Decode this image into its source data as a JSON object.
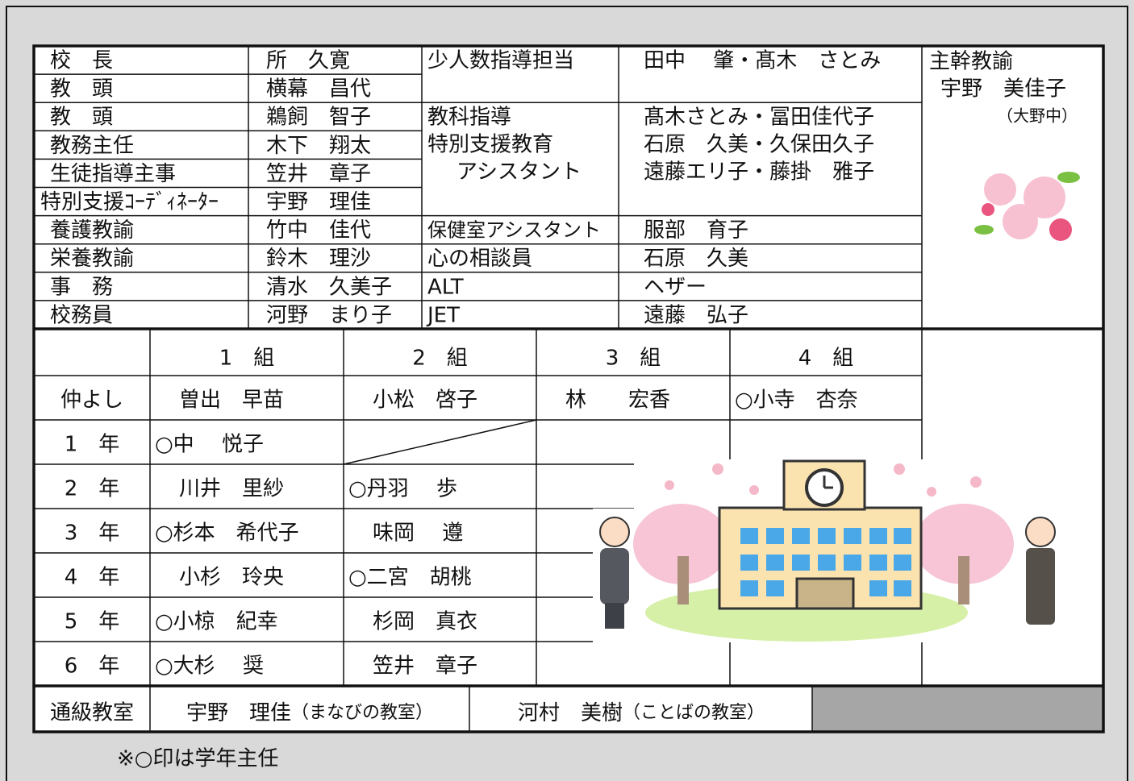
{
  "staff": [
    {
      "role": "校　長",
      "name": "所　久寛"
    },
    {
      "role": "教　頭",
      "name": "横幕　昌代"
    },
    {
      "role": "教　頭",
      "name": "鵜飼　智子"
    },
    {
      "role": "教務主任",
      "name": "木下　翔太"
    },
    {
      "role": "生徒指導主事",
      "name": "笠井　章子"
    },
    {
      "role": "特別支援ｺｰﾃﾞｨﾈｰﾀｰ",
      "name": "宇野　理佳"
    },
    {
      "role": "養護教諭",
      "name": "竹中　佳代"
    },
    {
      "role": "栄養教諭",
      "name": "鈴木　理沙"
    },
    {
      "role": "事　務",
      "name": "清水　久美子"
    },
    {
      "role": "校務員",
      "name": "河野　まり子"
    }
  ],
  "support": [
    {
      "role": [
        "少人数指導担当"
      ],
      "names": [
        "田中　 肇・髙木　さとみ"
      ]
    },
    {
      "role": [
        "教科指導",
        "特別支援教育",
        "アシスタント"
      ],
      "names": [
        "髙木さとみ・冨田佳代子",
        "石原　久美・久保田久子",
        "遠藤エリ子・藤掛　雅子"
      ]
    },
    {
      "role": [
        "保健室アシスタント"
      ],
      "names": [
        "服部　育子"
      ]
    },
    {
      "role": [
        "心の相談員"
      ],
      "names": [
        "石原　久美"
      ]
    },
    {
      "role": [
        "ALT"
      ],
      "names": [
        "ヘザー"
      ]
    },
    {
      "role": [
        "JET"
      ],
      "names": [
        "遠藤　弘子"
      ]
    }
  ],
  "head_teacher": {
    "title": "主幹教諭",
    "name": "宇野　美佳子",
    "note": "（大野中）"
  },
  "classes": {
    "headers": [
      "1　組",
      "2　組",
      "3　組",
      "4　組"
    ],
    "rows": [
      {
        "label": "仲よし",
        "cells": [
          "曽出　早苗",
          "小松　啓子",
          "林　　宏香",
          "○小寺　杏奈"
        ]
      },
      {
        "label": "1　年",
        "cells": [
          "○中　 悦子",
          null,
          null,
          null
        ]
      },
      {
        "label": "2　年",
        "cells": [
          "川井　里紗",
          "○丹羽　 歩",
          null,
          null
        ]
      },
      {
        "label": "3　年",
        "cells": [
          "○杉本　希代子",
          "味岡　 遵",
          null,
          null
        ]
      },
      {
        "label": "4　年",
        "cells": [
          "小杉　玲央",
          "○二宮　胡桃",
          null,
          null
        ]
      },
      {
        "label": "5　年",
        "cells": [
          "○小椋　紀幸",
          "杉岡　真衣",
          null,
          null
        ]
      },
      {
        "label": "6　年",
        "cells": [
          "○大杉　 奨",
          "笠井　章子",
          null,
          null
        ]
      }
    ]
  },
  "tsukyu": {
    "label": "通級教室",
    "entries": [
      {
        "name": "宇野　理佳",
        "room": "（まなびの教室）"
      },
      {
        "name": "河村　美樹",
        "room": "（ことばの教室）"
      }
    ]
  },
  "note": "※○印は学年主任"
}
